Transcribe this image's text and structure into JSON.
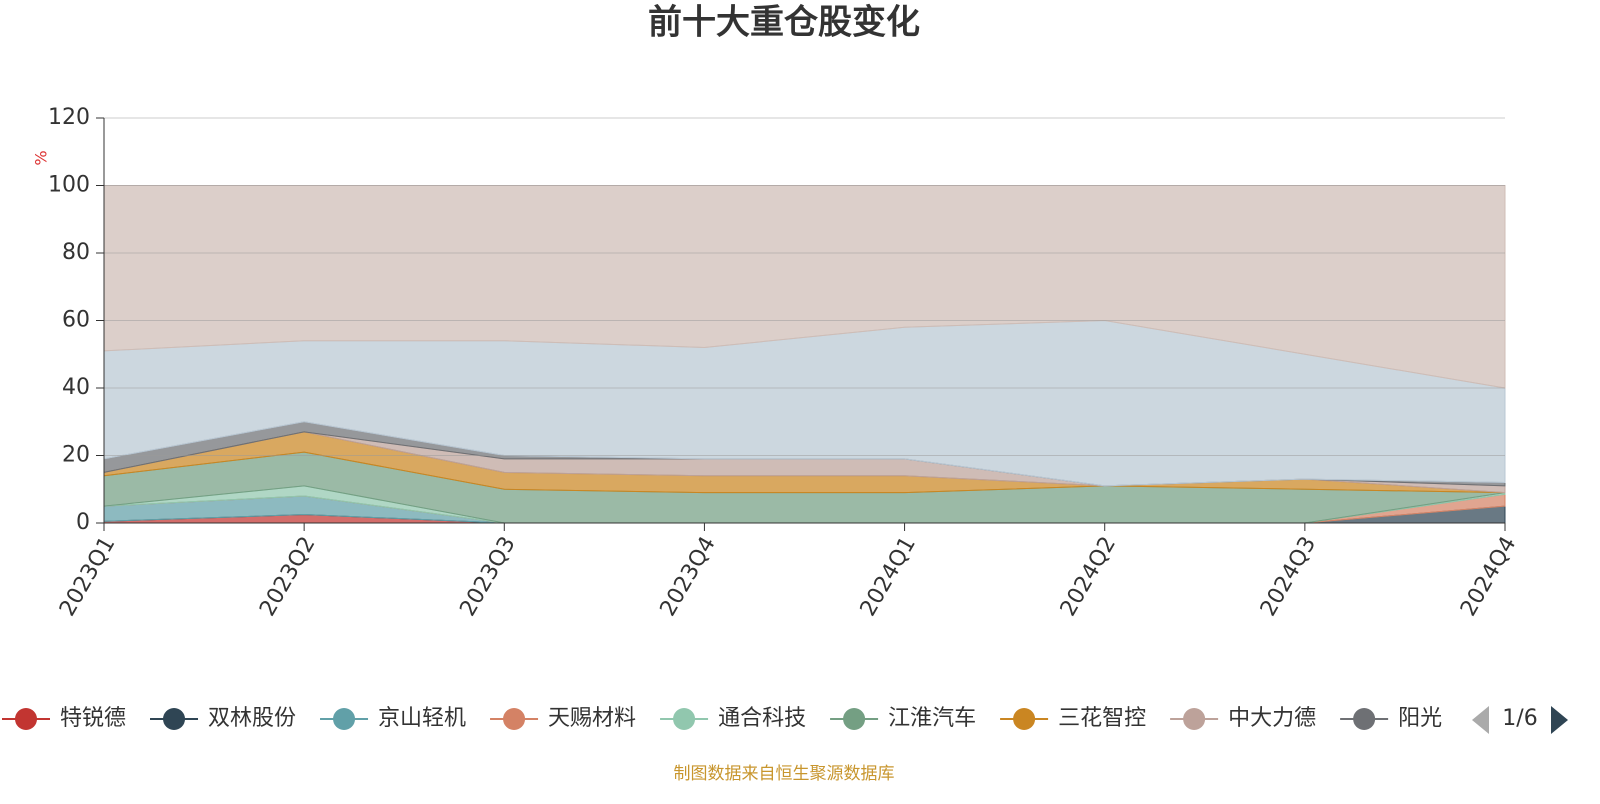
{
  "chart_data": {
    "type": "area",
    "stacked": true,
    "title": "前十大重仓股变化",
    "y_label": "%",
    "categories": [
      "2023Q1",
      "2023Q2",
      "2023Q3",
      "2023Q4",
      "2024Q1",
      "2024Q2",
      "2024Q3",
      "2024Q4"
    ],
    "ylim": [
      0,
      120
    ],
    "yticks": [
      0,
      20,
      40,
      60,
      80,
      100,
      120
    ],
    "grid": true,
    "series": [
      {
        "name": "特锐德",
        "color": "#c23531",
        "values": [
          0.5,
          2.5,
          0,
          0,
          0,
          0,
          0,
          0
        ]
      },
      {
        "name": "双林股份",
        "color": "#2f4554",
        "values": [
          0,
          0,
          0,
          0,
          0,
          0,
          0,
          5
        ]
      },
      {
        "name": "京山轻机",
        "color": "#61a0a8",
        "values": [
          4.5,
          5.5,
          0,
          0,
          0,
          0,
          0,
          0
        ]
      },
      {
        "name": "天赐材料",
        "color": "#d48265",
        "values": [
          0,
          0,
          0,
          0,
          0,
          0,
          0,
          3.5
        ]
      },
      {
        "name": "通合科技",
        "color": "#91c7ae",
        "values": [
          0,
          3,
          0,
          0,
          0,
          0,
          0,
          0.5
        ]
      },
      {
        "name": "江淮汽车",
        "color": "#749f83",
        "values": [
          9,
          10,
          10,
          9,
          9,
          11,
          10,
          0
        ]
      },
      {
        "name": "三花智控",
        "color": "#ca8622",
        "values": [
          1,
          6,
          5,
          5,
          5,
          0,
          3,
          0
        ]
      },
      {
        "name": "中大力德",
        "color": "#bda29a",
        "values": [
          0,
          0,
          4,
          5,
          5,
          0,
          0,
          2
        ]
      },
      {
        "name": "阳光",
        "color": "#6e7074",
        "values": [
          4,
          3,
          1,
          0,
          0,
          0,
          0,
          1
        ]
      },
      {
        "color": "#b9c7d3",
        "values": [
          32,
          24,
          34,
          33,
          39,
          49,
          37,
          28
        ]
      },
      {
        "color": "#cfbdb6",
        "values": [
          49,
          46,
          46,
          48,
          42,
          40,
          50,
          60
        ]
      }
    ],
    "legend_page": "1/6",
    "source": "制图数据来自恒生聚源数据库"
  }
}
